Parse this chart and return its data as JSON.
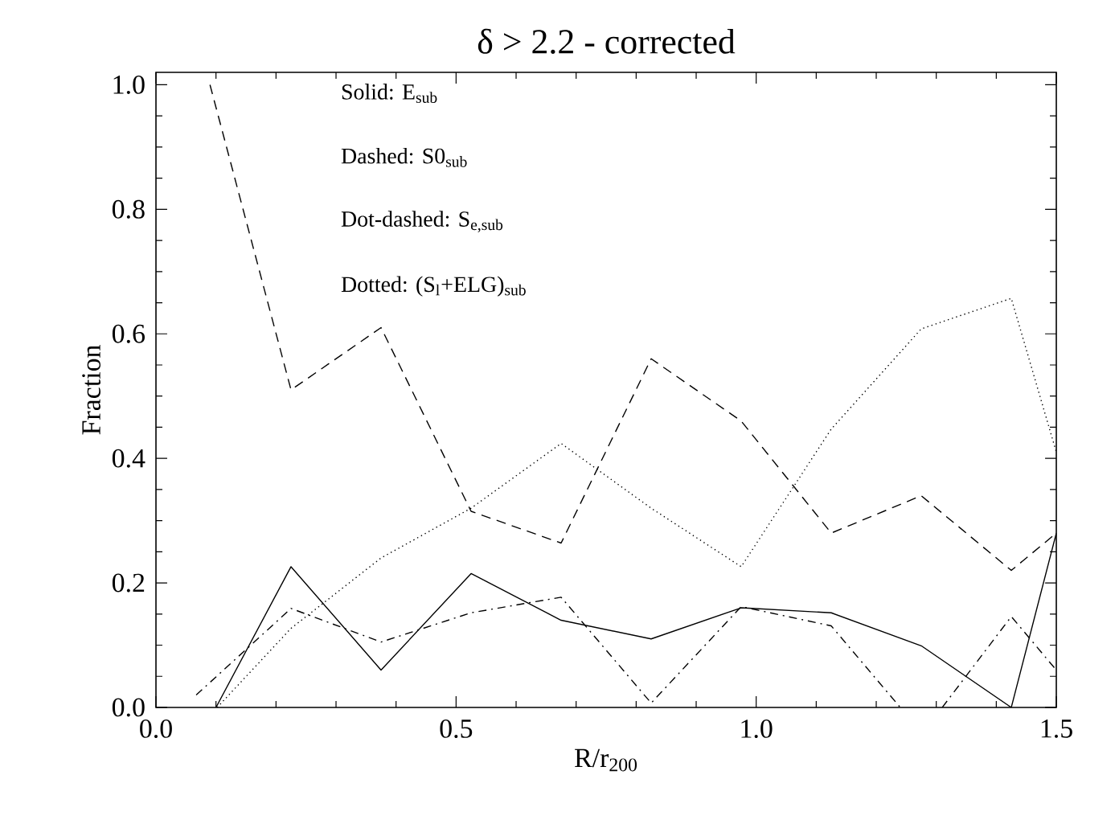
{
  "chart_data": {
    "type": "line",
    "title": "δ > 2.2 - corrected",
    "xlabel": "R/r$_{200}$",
    "ylabel": "Fraction",
    "annotations": [
      "Solid: E$_{sub}$",
      "Dashed: S0$_{sub}$",
      "Dot-dashed: S$_{e,sub}$",
      "Dotted: (S$_{l}$+ELG)$_{sub}$"
    ],
    "xlim": [
      0,
      1.5
    ],
    "ylim": [
      0,
      1.02
    ],
    "xticks": [
      {
        "value": 0,
        "label": "0.0"
      },
      {
        "value": 0.5,
        "label": "0.5"
      },
      {
        "value": 1,
        "label": "1.0"
      },
      {
        "value": 1.5,
        "label": "1.5"
      }
    ],
    "yticks": [
      {
        "value": 0,
        "label": "0.0"
      },
      {
        "value": 0.2,
        "label": "0.2"
      },
      {
        "value": 0.4,
        "label": "0.4"
      },
      {
        "value": 0.6,
        "label": "0.6"
      },
      {
        "value": 0.8,
        "label": "0.8"
      },
      {
        "value": 1,
        "label": "1.0"
      }
    ],
    "grid": false,
    "series": [
      {
        "color": "#000000",
        "line_style": "solid",
        "x": [
          0.1,
          0.225,
          0.375,
          0.525,
          0.675,
          0.825,
          0.975,
          1.125,
          1.275,
          1.425,
          1.5
        ],
        "values": [
          0,
          0.226,
          0.06,
          0.215,
          0.14,
          0.11,
          0.16,
          0.152,
          0.099,
          0,
          0.28
        ]
      },
      {
        "color": "#000000",
        "line_style": "dashed",
        "x": [
          0.09,
          0.225,
          0.375,
          0.525,
          0.675,
          0.825,
          0.975,
          1.125,
          1.275,
          1.425,
          1.5
        ],
        "values": [
          1.0,
          0.51,
          0.61,
          0.315,
          0.264,
          0.56,
          0.46,
          0.28,
          0.34,
          0.22,
          0.28
        ]
      },
      {
        "color": "#000000",
        "line_style": "dashdot",
        "x": [
          0.067,
          0.225,
          0.375,
          0.525,
          0.675,
          0.825,
          0.975,
          1.125,
          1.24,
          1.275,
          1.31,
          1.425,
          1.5
        ],
        "values": [
          0.02,
          0.159,
          0.105,
          0.152,
          0.177,
          0.007,
          0.162,
          0.131,
          0,
          null,
          0,
          0.146,
          0.06
        ]
      },
      {
        "color": "#000000",
        "line_style": "dotted",
        "x": [
          0.102,
          0.225,
          0.375,
          0.525,
          0.675,
          0.825,
          0.975,
          1.125,
          1.275,
          1.425,
          1.5
        ],
        "values": [
          0,
          0.127,
          0.24,
          0.32,
          0.424,
          0.32,
          0.226,
          0.447,
          0.608,
          0.657,
          0.41
        ]
      }
    ]
  }
}
